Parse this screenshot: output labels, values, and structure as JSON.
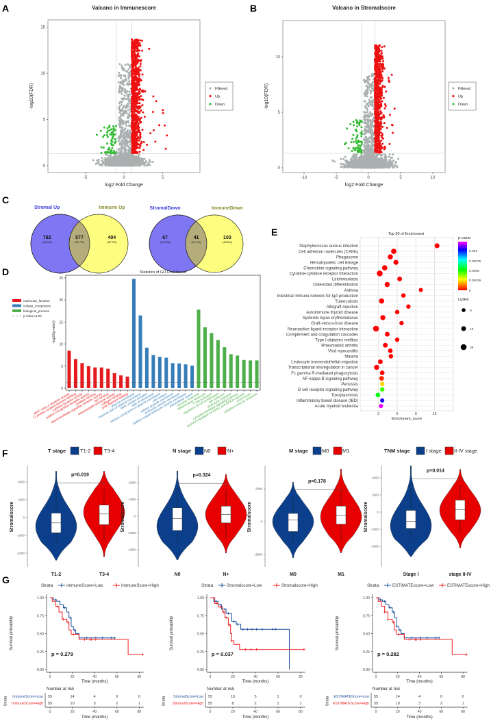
{
  "panel_labels": [
    "A",
    "B",
    "C",
    "D",
    "E",
    "F",
    "G"
  ],
  "colors": {
    "up": "#ee1111",
    "down": "#33bb33",
    "filtered": "#aab0b0",
    "low": "#1f4e9c",
    "high": "#ee1c1c",
    "violin_blue": "#0b3f8c",
    "violin_red": "#e60000",
    "mf": "#e41a1c",
    "cc": "#377eb8",
    "bp": "#4daf4a",
    "venn_left": "#7e76f2",
    "venn_right": "#fdfd80",
    "venn_mid": "#b4ac7a"
  },
  "chart_data": [
    {
      "type": "scatter",
      "title": "Valcano in Immunescore",
      "xlabel": "log2 Fold Change",
      "ylabel": "-log10(FDR)",
      "xticks": [
        -5,
        0,
        5
      ],
      "yticks": [
        0,
        5,
        10,
        15
      ],
      "xlim": [
        -9,
        9.8
      ],
      "ylim": [
        -0.6,
        15.6
      ],
      "logfc_cutoff": 1,
      "fdr_line": 1.3,
      "legend": [
        "Filtered",
        "Up",
        "Down"
      ],
      "legend_position": "right"
    },
    {
      "type": "scatter",
      "title": "Valcano in Stromalscore",
      "xlabel": "log2 Fold Change",
      "ylabel": "-log10(FDR)",
      "xticks": [
        -10,
        -5,
        0,
        5,
        10
      ],
      "yticks": [
        0,
        5,
        10
      ],
      "xlim": [
        -13,
        12.9
      ],
      "ylim": [
        -0.4,
        13.3
      ],
      "logfc_cutoff": 1,
      "fdr_line": 1.3,
      "legend": [
        "Filtered",
        "Up",
        "Down"
      ],
      "legend_position": "right"
    },
    {
      "type": "venn",
      "sets": [
        "Stromal Up",
        "Immune Up"
      ],
      "values": [
        "782",
        "577",
        "404"
      ],
      "percents": [
        "(44.4%)",
        "(32.7%)",
        "(22.9%)"
      ]
    },
    {
      "type": "venn",
      "sets": [
        "StromalDown",
        "ImmuneDown"
      ],
      "values": [
        "67",
        "41",
        "103"
      ],
      "percents": [
        "(31.8%)",
        "(19.4%)",
        "(48.8%)"
      ]
    },
    {
      "type": "bar",
      "title": "Statistics of GO Enrichment",
      "ylabel": "-log10(p-value)",
      "yticks": [
        0,
        5,
        10,
        15,
        20,
        25
      ],
      "ylim": [
        0,
        26
      ],
      "threshold": 1.3,
      "legend": [
        "molecular_function",
        "cellular_component",
        "biological_process",
        "p-value=0.05"
      ],
      "legend_position": "left",
      "groups": [
        "mf",
        "mf",
        "mf",
        "mf",
        "mf",
        "mf",
        "mf",
        "mf",
        "mf",
        "mf",
        "cc",
        "cc",
        "cc",
        "cc",
        "cc",
        "cc",
        "cc",
        "cc",
        "cc",
        "cc",
        "bp",
        "bp",
        "bp",
        "bp",
        "bp",
        "bp",
        "bp",
        "bp",
        "bp",
        "bp"
      ],
      "categories": [
        "MHC class II receptor activity",
        "G protein-coupled receptor binding",
        "cytokine receptor activity",
        "pattern recognition receptor activity",
        "cytokine binding",
        "transmembrane signaling receptor activity",
        "IgG binding",
        "neuropeptide hormone activity",
        "collagen binding",
        "actin filament binding",
        "plasma membrane",
        "external side of plasma membrane",
        "MHC protein complex",
        "side of membrane",
        "integral component of plasma membrane",
        "cell surface",
        "tertiary granule membrane",
        "endocytic vesicle membrane",
        "clathrin-coated endocytic vesicle membrane",
        "extracellular space",
        "immune response",
        "inflammatory response",
        "T cell activation",
        "regulation of cell proliferation",
        "cell adhesion",
        "leukocyte migration",
        "cytokine-mediated signaling pathway",
        "positive regulation of ERK1 and ERK2 cascade",
        "chemotaxis",
        "adaptive immune response"
      ],
      "values": [
        8.5,
        6.6,
        5.7,
        5.0,
        4.7,
        4.7,
        4.4,
        3.4,
        2.9,
        2.6,
        24.8,
        16.5,
        9.2,
        7.5,
        7.1,
        6.9,
        5.7,
        5.6,
        5.4,
        5.1,
        17.8,
        13.8,
        12.5,
        10.9,
        9.3,
        7.7,
        7.4,
        6.4,
        6.3,
        6.3
      ]
    },
    {
      "type": "scatter",
      "title": "Top 30 of  Enrichment",
      "xlabel": "Enrichment_score",
      "xticks": [
        3,
        6,
        9,
        12
      ],
      "xlim": [
        2,
        14
      ],
      "legend_pvalue_title": "p-value",
      "pvalue_ticks": [
        "0.001",
        "0.00075",
        "0.0005",
        "0.00025",
        "0"
      ],
      "legend_size_title": "ListHit",
      "size_ticks": [
        "9",
        "19",
        "38"
      ],
      "terms": [
        "Staphylococcus aureus infection",
        "Cell adhesion molecules (CAMs)",
        "Phagosome",
        "Hematopoietic cell lineage",
        "Chemokine signaling pathway",
        "Cytokine-cytokine receptor interaction",
        "Leishmaniasis",
        "Osteoclast differentiation",
        "Asthma",
        "Intestinal immune network for IgA production",
        "Tuberculosis",
        "Allograft rejection",
        "Autoimmune thyroid disease",
        "Systemic lupus erythematosus",
        "Graft-versus-host disease",
        "Neuroactive ligand-receptor interaction",
        "Complement and coagulation cascades",
        "Type I diabetes mellitus",
        "Rheumatoid arthritis",
        "Viral myocarditis",
        "Malaria",
        "Leukocyte transendothelial migration",
        "Transcriptional misregulation in cancer",
        "Fc gamma R-mediated phagocytosis",
        "NF-kappa B signaling pathway",
        "Pertussis",
        "B cell receptor signaling pathway",
        "Toxoplasmosis",
        "Inflammatory bowel disease (IBD)",
        "Acute myeloid leukemia"
      ],
      "enrichment_score": [
        12.4,
        5.45,
        4.9,
        5.8,
        4.0,
        3.2,
        6.4,
        4.4,
        9.8,
        7.0,
        3.5,
        7.8,
        6.0,
        3.7,
        6.7,
        2.6,
        4.4,
        6.0,
        4.1,
        4.9,
        5.0,
        3.3,
        2.7,
        3.6,
        3.5,
        3.6,
        3.6,
        2.9,
        3.6,
        3.4
      ],
      "list_hit": [
        22,
        28,
        26,
        22,
        28,
        38,
        19,
        24,
        12,
        15,
        26,
        14,
        15,
        24,
        14,
        38,
        19,
        14,
        19,
        17,
        15,
        19,
        24,
        17,
        19,
        15,
        15,
        17,
        12,
        12
      ],
      "p_value": [
        0,
        0,
        0,
        0,
        0,
        0,
        0,
        0,
        0,
        0,
        0,
        0,
        0,
        0,
        0,
        0,
        0,
        0,
        0,
        0,
        0,
        0,
        0,
        0,
        4e-05,
        0.0002,
        0.00042,
        0.0005,
        0.00098,
        0.00118
      ]
    },
    {
      "type": "violin",
      "legend_title": "T stage",
      "groups": [
        "T1-2",
        "T3-4"
      ],
      "ylabel": "Stromalscore",
      "p": "p=0.019",
      "yticks": [
        -2000,
        -1000,
        0,
        1000,
        2000
      ],
      "stats": [
        {
          "q1": -850,
          "median": -300,
          "q3": 250,
          "min": -2400,
          "max": 2600,
          "mode": -500
        },
        {
          "q1": -400,
          "median": 200,
          "q3": 700,
          "min": -2200,
          "max": 2600,
          "mode": 300
        }
      ]
    },
    {
      "type": "violin",
      "legend_title": "N stage",
      "groups": [
        "N0",
        "N+"
      ],
      "ylabel": "Stromalscore",
      "p": "p=0.324",
      "yticks": [
        -2000,
        -1000,
        0,
        1000,
        2000
      ],
      "stats": [
        {
          "q1": -850,
          "median": -150,
          "q3": 500,
          "min": -2600,
          "max": 2700,
          "mode": -600
        },
        {
          "q1": -400,
          "median": 100,
          "q3": 600,
          "min": -2200,
          "max": 2500,
          "mode": 100
        }
      ]
    },
    {
      "type": "violin",
      "legend_title": "M stage",
      "groups": [
        "M0",
        "M1"
      ],
      "ylabel": "Stromalscore",
      "p": "p=0.178",
      "yticks": [
        -2000,
        0,
        2000
      ],
      "stats": [
        {
          "q1": -600,
          "median": 100,
          "q3": 500,
          "min": -2200,
          "max": 2400,
          "mode": 0
        },
        {
          "q1": -150,
          "median": 400,
          "q3": 950,
          "min": -1900,
          "max": 3200,
          "mode": 300
        }
      ]
    },
    {
      "type": "violin",
      "legend_title": "TNM stage",
      "groups": [
        "I stage",
        "II-IV stage"
      ],
      "xlabels": [
        "Stage I",
        "stage II-IV"
      ],
      "ylabel": "Stromalscore",
      "p": "p=0.014",
      "yticks": [
        -2000,
        -1000,
        0,
        1000,
        2000
      ],
      "stats": [
        {
          "q1": -950,
          "median": -550,
          "q3": 100,
          "min": -2600,
          "max": 2700,
          "mode": -800
        },
        {
          "q1": -450,
          "median": 150,
          "q3": 700,
          "min": -2100,
          "max": 2500,
          "mode": 100
        }
      ]
    },
    {
      "type": "line",
      "subtype": "kaplan-meier",
      "strata_title": "Strata",
      "series": [
        {
          "name": "ImmuneScore=Low",
          "risk": [
            "55",
            "14",
            "4",
            "0",
            "0"
          ],
          "steps": [
            [
              0,
              1
            ],
            [
              3,
              0.97
            ],
            [
              6,
              0.95
            ],
            [
              9,
              0.9
            ],
            [
              12,
              0.86
            ],
            [
              15,
              0.8
            ],
            [
              17,
              0.72
            ],
            [
              19,
              0.6
            ],
            [
              21,
              0.55
            ],
            [
              23,
              0.5
            ],
            [
              26,
              0.44
            ],
            [
              58,
              0.44
            ]
          ],
          "censor": [
            5,
            13,
            18,
            22,
            33,
            41,
            47,
            55,
            58
          ]
        },
        {
          "name": "ImmuneScore=High",
          "risk": [
            "55",
            "10",
            "3",
            "2",
            "1"
          ],
          "steps": [
            [
              0,
              1
            ],
            [
              2,
              0.95
            ],
            [
              5,
              0.88
            ],
            [
              8,
              0.8
            ],
            [
              11,
              0.7
            ],
            [
              15,
              0.66
            ],
            [
              17,
              0.55
            ],
            [
              19,
              0.49
            ],
            [
              26,
              0.42
            ],
            [
              70,
              0.42
            ],
            [
              70,
              0.21
            ],
            [
              83,
              0.21
            ]
          ],
          "censor": [
            7,
            12,
            16,
            21,
            31,
            36,
            37,
            41,
            83
          ]
        }
      ],
      "p": "p = 0.279",
      "ylabel": "Survival probability",
      "xlabel": "Time (months)",
      "risk_title": "Number at risk",
      "xticks": [
        0,
        20,
        40,
        60,
        80
      ],
      "yticks": [
        "0.00",
        "0.25",
        "0.50",
        "0.75",
        "1.00"
      ]
    },
    {
      "type": "line",
      "subtype": "kaplan-meier",
      "strata_title": "Strata",
      "series": [
        {
          "name": "Stromalscore=Low",
          "table_name": "StromalScore=Low",
          "risk": [
            "55",
            "16",
            "5",
            "1",
            "0"
          ],
          "steps": [
            [
              0,
              1
            ],
            [
              3,
              0.95
            ],
            [
              7,
              0.9
            ],
            [
              10,
              0.84
            ],
            [
              14,
              0.78
            ],
            [
              19,
              0.67
            ],
            [
              23,
              0.63
            ],
            [
              27,
              0.56
            ],
            [
              70,
              0.56
            ],
            [
              70,
              0
            ]
          ],
          "censor": [
            5,
            9,
            13,
            16,
            21,
            24,
            29,
            33,
            37,
            41,
            46,
            55,
            58
          ]
        },
        {
          "name": "Stromalscore=High",
          "table_name": "StromalScore=High",
          "risk": [
            "55",
            "8",
            "2",
            "1",
            "1"
          ],
          "steps": [
            [
              0,
              1
            ],
            [
              4,
              0.92
            ],
            [
              7,
              0.87
            ],
            [
              11,
              0.8
            ],
            [
              13,
              0.72
            ],
            [
              16,
              0.62
            ],
            [
              18,
              0.5
            ],
            [
              19,
              0.4
            ],
            [
              21,
              0.35
            ],
            [
              26,
              0.28
            ],
            [
              83,
              0.28
            ]
          ],
          "censor": [
            6,
            9,
            12,
            14,
            17,
            19,
            31,
            36,
            41,
            83
          ]
        }
      ],
      "p": "p = 0.037",
      "ylabel": "Survival probability",
      "xlabel": "Time (months)",
      "risk_title": "Number at risk",
      "xticks": [
        0,
        20,
        40,
        60,
        80
      ],
      "yticks": [
        "0.00",
        "0.25",
        "0.50",
        "0.75",
        "1.00"
      ]
    },
    {
      "type": "line",
      "subtype": "kaplan-meier",
      "strata_title": "Strata",
      "series": [
        {
          "name": "ESTIMATEscore=Low",
          "table_name": "ESTIMATEScore=Low",
          "risk": [
            "55",
            "14",
            "4",
            "0",
            "0"
          ],
          "steps": [
            [
              0,
              1
            ],
            [
              3,
              0.97
            ],
            [
              6,
              0.95
            ],
            [
              9,
              0.9
            ],
            [
              12,
              0.86
            ],
            [
              15,
              0.8
            ],
            [
              17,
              0.72
            ],
            [
              19,
              0.6
            ],
            [
              21,
              0.55
            ],
            [
              23,
              0.5
            ],
            [
              26,
              0.44
            ],
            [
              58,
              0.44
            ]
          ],
          "censor": [
            4,
            8,
            13,
            16,
            19,
            22,
            33,
            41,
            47,
            55,
            58
          ]
        },
        {
          "name": "ESTIMATEscore=High",
          "table_name": "ESTIMATEScore=High",
          "risk": [
            "55",
            "10",
            "3",
            "2",
            "1"
          ],
          "steps": [
            [
              0,
              1
            ],
            [
              2,
              0.95
            ],
            [
              5,
              0.88
            ],
            [
              8,
              0.8
            ],
            [
              11,
              0.7
            ],
            [
              15,
              0.66
            ],
            [
              17,
              0.55
            ],
            [
              19,
              0.49
            ],
            [
              26,
              0.42
            ],
            [
              70,
              0.42
            ],
            [
              70,
              0.21
            ],
            [
              83,
              0.21
            ]
          ],
          "censor": [
            8,
            11,
            16,
            21,
            31,
            36,
            37,
            41,
            83
          ]
        }
      ],
      "p": "p = 0.282",
      "ylabel": "Survival probability",
      "xlabel": "Time (months)",
      "risk_title": "Number at risk",
      "xticks": [
        0,
        20,
        40,
        60,
        80
      ],
      "yticks": [
        "0.00",
        "0.25",
        "0.50",
        "0.75",
        "1.00"
      ]
    }
  ]
}
